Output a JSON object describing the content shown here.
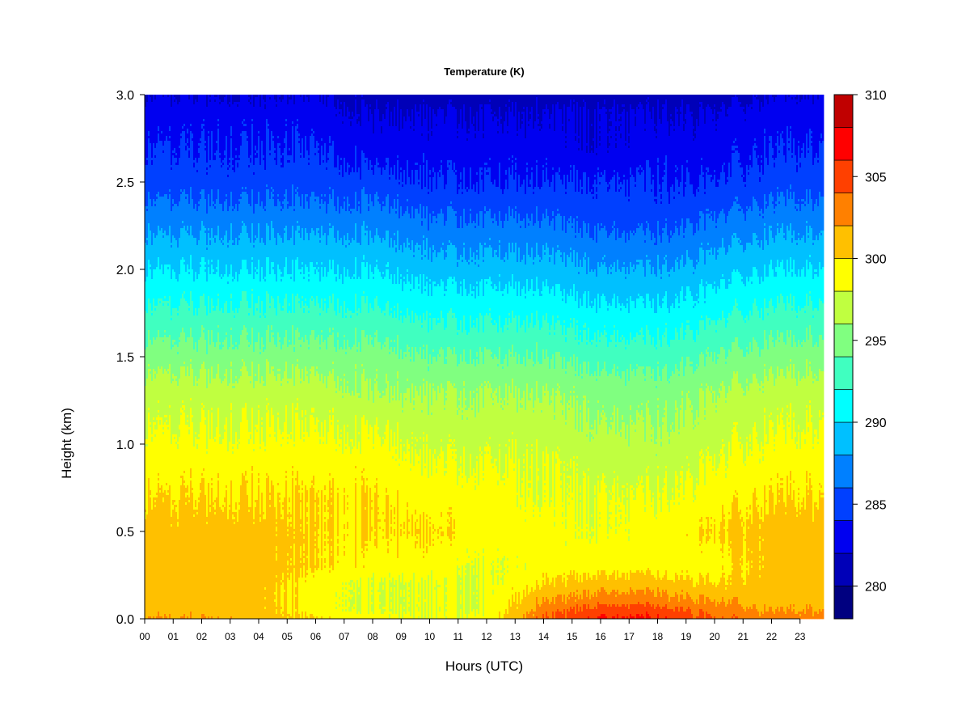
{
  "chart_data": {
    "type": "heatmap",
    "title": "Temperature (K)",
    "xlabel": "Hours (UTC)",
    "ylabel": "Height (km)",
    "x_ticks": [
      "00",
      "01",
      "02",
      "03",
      "04",
      "05",
      "06",
      "07",
      "08",
      "09",
      "10",
      "11",
      "12",
      "13",
      "14",
      "15",
      "16",
      "17",
      "18",
      "19",
      "20",
      "21",
      "22",
      "23"
    ],
    "xlim": [
      0,
      23.83
    ],
    "y_ticks": [
      0.0,
      0.5,
      1.0,
      1.5,
      2.0,
      2.5,
      3.0
    ],
    "y_tick_labels": [
      "0.0",
      "0.5",
      "1.0",
      "1.5",
      "2.0",
      "2.5",
      "3.0"
    ],
    "ylim": [
      0,
      3.0
    ],
    "colorbar": {
      "label_values": [
        280,
        285,
        290,
        295,
        300,
        305,
        310
      ],
      "labels": [
        "280",
        "285",
        "290",
        "295",
        "300",
        "305",
        "310"
      ],
      "levels": [
        278,
        280,
        282,
        284,
        286,
        288,
        290,
        292,
        294,
        296,
        298,
        300,
        302,
        304,
        306,
        308,
        310
      ],
      "colors": [
        "#000080",
        "#0000b8",
        "#0000f0",
        "#0040ff",
        "#0080ff",
        "#00c0ff",
        "#00ffff",
        "#40ffc0",
        "#80ff80",
        "#c0ff40",
        "#ffff00",
        "#ffc000",
        "#ff8000",
        "#ff4000",
        "#ff0000",
        "#c00000"
      ]
    },
    "height_levels_km": [
      0.0,
      0.05,
      0.1,
      0.2,
      0.3,
      0.5,
      0.7,
      0.9,
      1.1,
      1.3,
      1.5,
      1.7,
      1.9,
      2.1,
      2.3,
      2.5,
      2.7,
      2.9,
      3.0
    ],
    "hours": [
      0,
      2,
      4,
      6,
      8,
      10,
      12,
      14,
      16,
      18,
      20,
      22,
      23.83
    ],
    "values_K": [
      [
        302,
        302,
        301,
        300,
        299,
        298,
        299,
        304,
        306,
        306,
        304,
        303,
        303
      ],
      [
        301,
        301,
        301,
        299,
        298,
        298,
        298,
        303,
        305,
        305,
        303,
        302,
        302
      ],
      [
        301,
        301,
        301,
        299,
        298,
        298,
        298,
        302,
        303,
        303,
        302,
        301,
        301
      ],
      [
        301,
        301,
        301,
        299,
        298,
        298,
        298,
        300,
        301,
        301,
        300,
        301,
        301
      ],
      [
        301,
        301,
        301,
        300,
        299,
        299,
        298,
        299,
        299,
        299,
        299,
        301,
        301
      ],
      [
        301,
        301,
        301,
        300,
        300,
        300,
        299,
        299,
        298,
        299,
        300,
        301,
        301
      ],
      [
        300,
        300,
        300,
        300,
        300,
        299,
        299,
        298,
        298,
        298,
        299,
        300,
        300
      ],
      [
        299,
        299,
        299,
        299,
        299,
        298,
        298,
        298,
        297,
        297,
        298,
        299,
        299
      ],
      [
        298,
        298,
        298,
        298,
        298,
        297,
        297,
        297,
        296,
        296,
        297,
        298,
        298
      ],
      [
        297,
        297,
        297,
        297,
        296,
        296,
        296,
        296,
        295,
        295,
        296,
        297,
        297
      ],
      [
        295,
        295,
        295,
        295,
        295,
        294,
        294,
        294,
        293,
        293,
        294,
        295,
        295
      ],
      [
        293,
        293,
        293,
        293,
        293,
        292,
        292,
        292,
        291,
        291,
        292,
        293,
        293
      ],
      [
        291,
        291,
        291,
        291,
        291,
        290,
        290,
        290,
        289,
        289,
        290,
        291,
        291
      ],
      [
        289,
        289,
        289,
        289,
        289,
        288,
        288,
        288,
        287,
        287,
        288,
        289,
        289
      ],
      [
        287,
        287,
        287,
        287,
        287,
        286,
        286,
        286,
        285,
        285,
        286,
        287,
        287
      ],
      [
        285,
        285,
        285,
        285,
        285,
        284,
        284,
        284,
        284,
        284,
        284,
        285,
        285
      ],
      [
        284,
        284,
        284,
        284,
        283,
        283,
        283,
        283,
        282,
        283,
        283,
        284,
        284
      ],
      [
        283,
        283,
        283,
        283,
        282,
        282,
        282,
        282,
        282,
        282,
        282,
        283,
        283
      ],
      [
        282,
        282,
        282,
        282,
        281,
        281,
        281,
        281,
        281,
        281,
        281,
        282,
        282
      ]
    ]
  }
}
